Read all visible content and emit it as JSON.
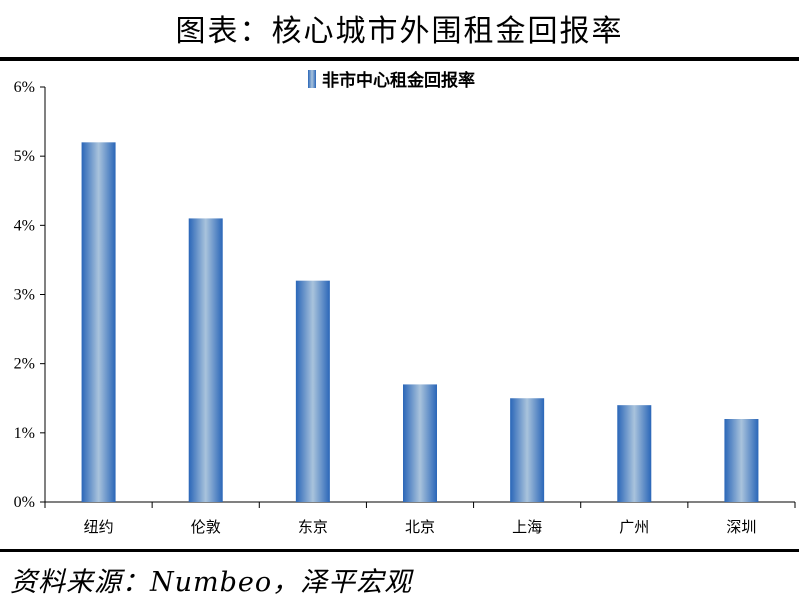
{
  "header": {
    "title": "图表：核心城市外围租金回报率"
  },
  "footer": {
    "source": "资料来源：Numbeo，泽平宏观"
  },
  "chart_data": {
    "type": "bar",
    "categories": [
      "纽约",
      "伦敦",
      "东京",
      "北京",
      "上海",
      "广州",
      "深圳"
    ],
    "series": [
      {
        "name": "非市中心租金回报率",
        "values": [
          5.2,
          4.1,
          3.2,
          1.7,
          1.5,
          1.4,
          1.2
        ]
      }
    ],
    "ylim": [
      0,
      6
    ],
    "yticks": [
      "0%",
      "1%",
      "2%",
      "3%",
      "4%",
      "5%",
      "6%"
    ],
    "legend_position": "top-center",
    "grid": false,
    "colors": {
      "bar_edge": "#2f6fbf",
      "bar_center": "#a9c3dc"
    }
  }
}
